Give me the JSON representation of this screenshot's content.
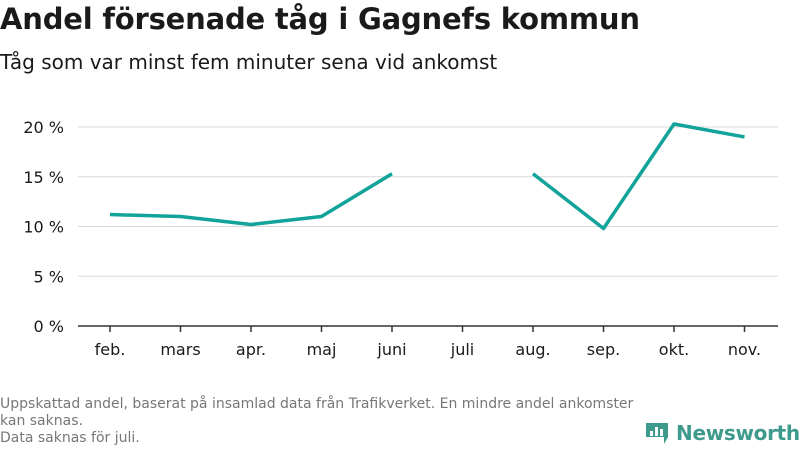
{
  "header": {
    "title": "Andel försenade tåg i Gagnefs kommun",
    "subtitle": "Tåg som var minst fem minuter sena vid ankomst"
  },
  "chart_data": {
    "type": "line",
    "title": "Andel försenade tåg i Gagnefs kommun",
    "subtitle": "Tåg som var minst fem minuter sena vid ankomst",
    "categories": [
      "feb.",
      "mars",
      "apr.",
      "maj",
      "juni",
      "juli",
      "aug.",
      "sep.",
      "okt.",
      "nov."
    ],
    "series": [
      {
        "values": [
          11.2,
          11.0,
          10.2,
          11.0,
          15.3,
          null,
          15.3,
          9.8,
          20.3,
          19.0
        ]
      }
    ],
    "y_ticks": [
      "0 %",
      "5 %",
      "10 %",
      "15 %",
      "20 %"
    ],
    "y_tick_values": [
      0,
      5,
      10,
      15,
      20
    ],
    "ylim": [
      0,
      22
    ],
    "grid": true,
    "color": "#12a39a"
  },
  "footnote": {
    "line1": "Uppskattad andel, baserat på insamlad data från Trafikverket. En mindre andel ankomster kan saknas.",
    "line2": "Data saknas för juli."
  },
  "brand": {
    "name": "Newsworthy",
    "icon": "bar-chart-logo-icon",
    "color": "#3f9a8e"
  }
}
